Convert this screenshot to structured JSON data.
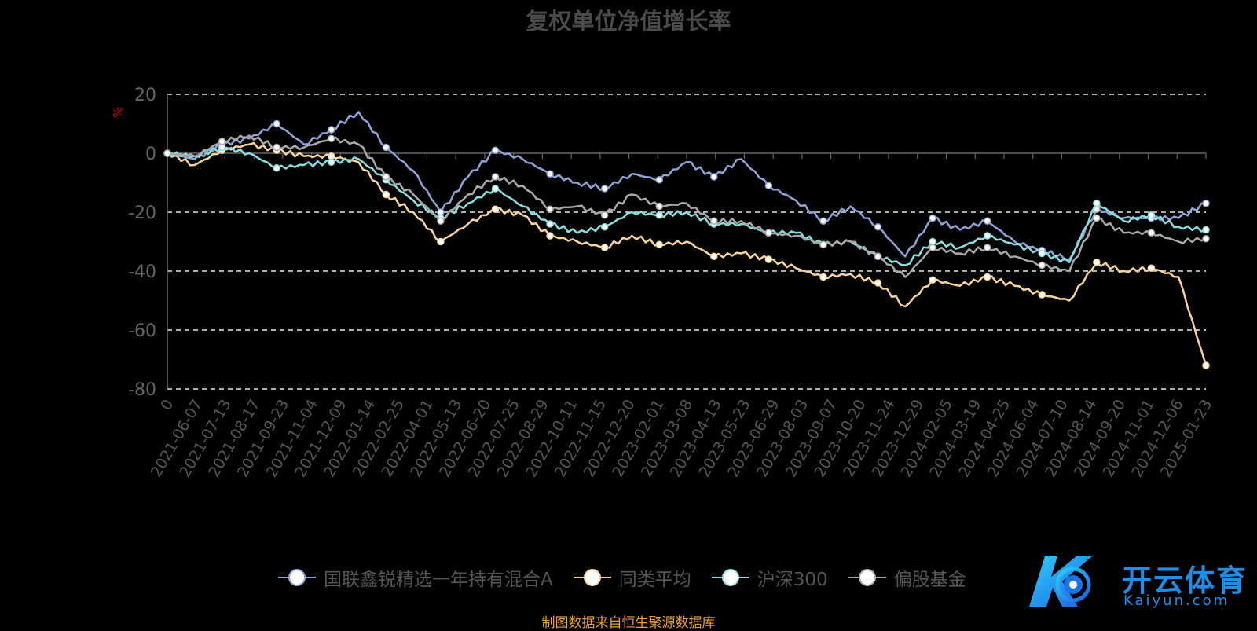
{
  "chart_data": {
    "type": "line",
    "title": "复权单位净值增长率",
    "ylabel": "%",
    "ylim": [
      -80,
      20
    ],
    "yticks": [
      20,
      0,
      -20,
      -40,
      -60,
      -80
    ],
    "grid": true,
    "legend_position": "bottom",
    "x_tick_labels": [
      "0",
      "2021-06-07",
      "2021-07-13",
      "2021-08-17",
      "2021-09-23",
      "2021-11-04",
      "2021-12-09",
      "2022-01-14",
      "2022-02-25",
      "2022-04-01",
      "2022-05-13",
      "2022-06-20",
      "2022-07-25",
      "2022-08-29",
      "2022-10-11",
      "2022-11-15",
      "2022-12-20",
      "2023-02-01",
      "2023-03-08",
      "2023-04-13",
      "2023-05-23",
      "2023-06-29",
      "2023-08-03",
      "2023-09-07",
      "2023-10-20",
      "2023-11-24",
      "2023-12-29",
      "2024-02-05",
      "2024-03-19",
      "2024-04-25",
      "2024-06-04",
      "2024-07-10",
      "2024-08-14",
      "2024-09-20",
      "2024-11-01",
      "2024-12-06",
      "2025-01-23"
    ],
    "x": [
      "2021-06-01",
      "2021-06-07",
      "2021-07-13",
      "2021-08-17",
      "2021-09-23",
      "2021-11-04",
      "2021-12-09",
      "2022-01-14",
      "2022-02-25",
      "2022-04-01",
      "2022-05-13",
      "2022-06-20",
      "2022-07-25",
      "2022-08-29",
      "2022-10-11",
      "2022-11-15",
      "2022-12-20",
      "2023-02-01",
      "2023-03-08",
      "2023-04-13",
      "2023-05-23",
      "2023-06-29",
      "2023-08-03",
      "2023-09-07",
      "2023-10-20",
      "2023-11-24",
      "2023-12-29",
      "2024-02-05",
      "2024-03-19",
      "2024-04-25",
      "2024-06-04",
      "2024-07-10",
      "2024-08-14",
      "2024-09-20",
      "2024-10-08",
      "2024-11-01",
      "2024-12-06",
      "2025-01-23",
      "2025-01-24"
    ],
    "series": [
      {
        "name": "国联鑫锐精选一年持有混合A",
        "color": "#8ea4d8",
        "values": [
          0,
          -2,
          3,
          5,
          10,
          3,
          8,
          14,
          2,
          -6,
          -20,
          -8,
          1,
          -2,
          -7,
          -10,
          -12,
          -7,
          -9,
          -3,
          -8,
          -2,
          -11,
          -16,
          -23,
          -18,
          -25,
          -35,
          -22,
          -26,
          -23,
          -30,
          -33,
          -36,
          -19,
          -22,
          -22,
          -22,
          -17
        ]
      },
      {
        "name": "同类平均",
        "color": "#f8d49a",
        "values": [
          0,
          -4,
          1,
          3,
          1,
          -1,
          -1,
          -3,
          -14,
          -20,
          -30,
          -24,
          -19,
          -21,
          -28,
          -30,
          -32,
          -28,
          -31,
          -30,
          -35,
          -34,
          -36,
          -39,
          -42,
          -41,
          -44,
          -52,
          -43,
          -45,
          -42,
          -45,
          -48,
          -50,
          -37,
          -40,
          -39,
          -42,
          -72
        ]
      },
      {
        "name": "沪深300",
        "color": "#88dede",
        "values": [
          0,
          -1,
          2,
          0,
          -5,
          -4,
          -3,
          -2,
          -9,
          -16,
          -22,
          -17,
          -12,
          -18,
          -24,
          -27,
          -25,
          -20,
          -21,
          -20,
          -24,
          -24,
          -27,
          -27,
          -31,
          -30,
          -35,
          -38,
          -30,
          -32,
          -28,
          -31,
          -34,
          -37,
          -17,
          -23,
          -21,
          -25,
          -26
        ]
      },
      {
        "name": "偏股基金",
        "color": "#a8a8a8",
        "values": [
          0,
          -1,
          4,
          6,
          2,
          2,
          5,
          3,
          -8,
          -14,
          -23,
          -14,
          -8,
          -11,
          -19,
          -18,
          -21,
          -14,
          -18,
          -17,
          -23,
          -23,
          -27,
          -28,
          -31,
          -30,
          -35,
          -42,
          -32,
          -34,
          -32,
          -35,
          -38,
          -40,
          -22,
          -27,
          -27,
          -30,
          -29
        ]
      }
    ]
  },
  "source_note": "制图数据来自恒生聚源数据库",
  "watermark": {
    "text": "开云体育",
    "sub": "Kaiyun.com"
  }
}
